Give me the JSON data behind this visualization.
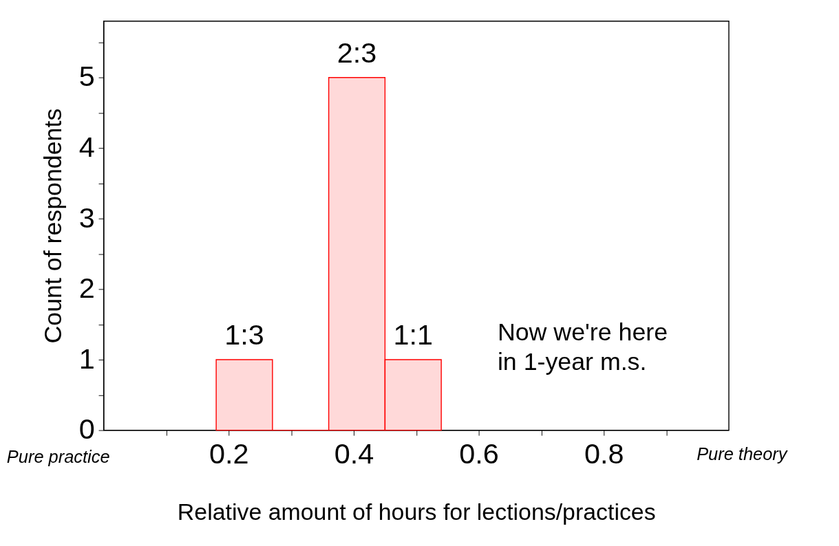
{
  "chart_data": {
    "type": "histogram",
    "xlabel": "Relative amount of hours for lections/practices",
    "ylabel": "Count of respondents",
    "bins": [
      0.18,
      0.27,
      0.36,
      0.45,
      0.54
    ],
    "values": [
      1,
      0,
      5,
      1
    ],
    "color": "#ff0000",
    "xlim": [
      0,
      1
    ],
    "xticks": [
      {
        "value": 0.1,
        "label": null
      },
      0.2,
      {
        "value": 0.3,
        "label": null
      },
      0.4,
      {
        "value": 0.5,
        "label": null
      },
      0.6,
      {
        "value": 0.7,
        "label": null
      },
      0.8,
      {
        "value": 0.9,
        "label": null
      }
    ],
    "ylim": [
      0,
      5.8
    ],
    "yticks": [
      0,
      {
        "value": 0.5,
        "label": null
      },
      1,
      {
        "value": 1.5,
        "label": null
      },
      2,
      {
        "value": 2.5,
        "label": null
      },
      3,
      {
        "value": 3.5,
        "label": null
      },
      4,
      {
        "value": 4.5,
        "label": null
      },
      5,
      {
        "value": 5.5,
        "label": null
      }
    ],
    "grid": false,
    "annotations": [
      {
        "text": "1:3",
        "x": 0.225,
        "y": 1
      },
      {
        "text": "2:3",
        "x": 0.405,
        "y": 5
      },
      {
        "text": "1:1",
        "x": 0.495,
        "y": 1
      },
      "Pure practice",
      "Pure theory",
      "Now we're here\nin 1-year m.s."
    ]
  }
}
